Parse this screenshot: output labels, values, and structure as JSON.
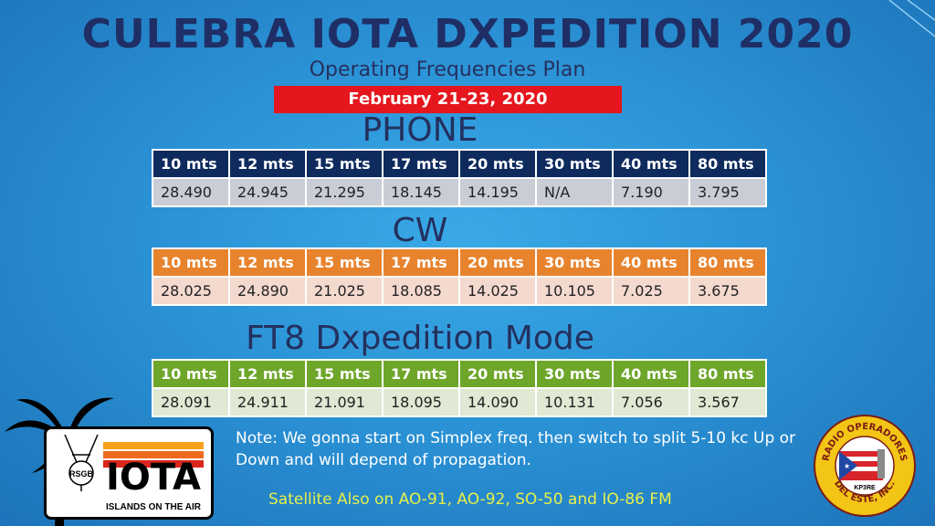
{
  "title": "CULEBRA IOTA DXPEDITION 2020",
  "subtitle": "Operating Frequencies Plan",
  "date": "February 21-23, 2020",
  "bands": [
    "10 mts",
    "12 mts",
    "15 mts",
    "17 mts",
    "20 mts",
    "30 mts",
    "40 mts",
    "80 mts"
  ],
  "sections": {
    "phone": {
      "label": "PHONE",
      "values": [
        "28.490",
        "24.945",
        "21.295",
        "18.145",
        "14.195",
        "N/A",
        "7.190",
        "3.795"
      ]
    },
    "cw": {
      "label": "CW",
      "values": [
        "28.025",
        "24.890",
        "21.025",
        "18.085",
        "14.025",
        "10.105",
        "7.025",
        "3.675"
      ]
    },
    "ft8": {
      "label": "FT8 Dxpedition Mode",
      "values": [
        "28.091",
        "24.911",
        "21.091",
        "18.095",
        "14.090",
        "10.131",
        "7.056",
        "3.567"
      ]
    }
  },
  "note": "Note: We gonna start on Simplex freq. then switch to split 5-10 kc Up or Down and will depend of propagation.",
  "satellite": "Satellite Also on AO-91, AO-92, SO-50 and IO-86 FM",
  "logos": {
    "iota_text": "IOTA",
    "iota_sub": "ISLANDS ON THE AIR",
    "rsgb": "RSGB",
    "rode_top": "RADIO OPERADORES",
    "rode_bottom": "DEL ESTE, INC.",
    "rode_call": "KP3RE"
  },
  "colors": {
    "title": "#1f2f66",
    "banner": "#e5161d",
    "phone_header": "#0f2b5e",
    "cw_header": "#e8832d",
    "ft8_header": "#6ea62a",
    "satellite_text": "#e7f04a"
  }
}
